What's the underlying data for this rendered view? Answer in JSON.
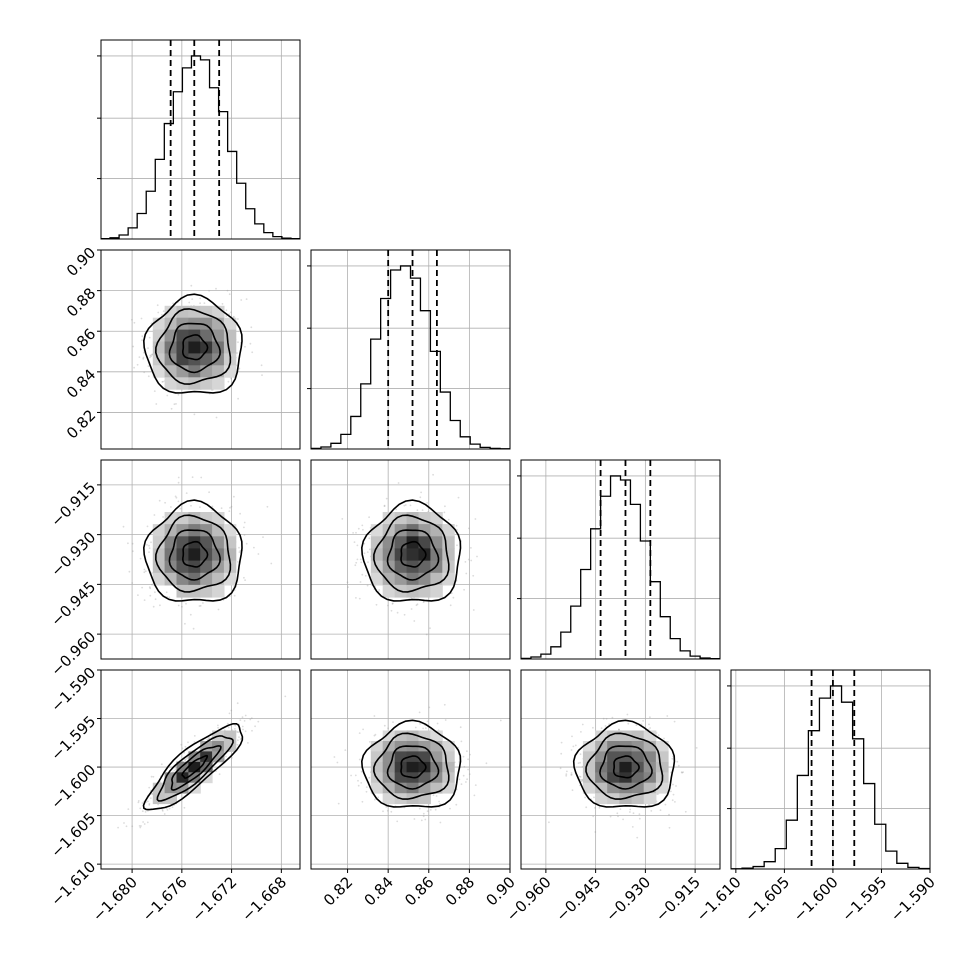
{
  "chart_data": {
    "type": "corner",
    "n_params": 4,
    "params": [
      {
        "ticks": [
          -1.68,
          -1.676,
          -1.672,
          -1.668
        ],
        "tick_labels": [
          "−1.680",
          "−1.676",
          "−1.672",
          "−1.668"
        ],
        "range": [
          -1.6825,
          -1.6665
        ],
        "quantiles": [
          -1.6769,
          -1.675,
          -1.673
        ],
        "hist": [
          5,
          15,
          50,
          140,
          320,
          600,
          1000,
          1450,
          1850,
          2150,
          2300,
          2250,
          1900,
          1600,
          1100,
          700,
          380,
          190,
          80,
          30,
          10,
          4
        ]
      },
      {
        "ticks": [
          0.82,
          0.84,
          0.86,
          0.88,
          0.9
        ],
        "tick_labels": [
          "0.82",
          "0.84",
          "0.86",
          "0.88",
          "0.90"
        ],
        "range": [
          0.802,
          0.9
        ],
        "quantiles": [
          0.84,
          0.852,
          0.864
        ],
        "hist": [
          8,
          25,
          70,
          180,
          400,
          800,
          1350,
          1850,
          2200,
          2250,
          2100,
          1700,
          1200,
          700,
          350,
          150,
          60,
          20,
          8,
          3
        ]
      },
      {
        "ticks": [
          -0.96,
          -0.945,
          -0.93,
          -0.915
        ],
        "tick_labels": [
          "−0.960",
          "−0.945",
          "−0.930",
          "−0.915"
        ],
        "range": [
          -0.9675,
          -0.9075
        ],
        "quantiles": [
          -0.9435,
          -0.936,
          -0.9285
        ],
        "hist": [
          8,
          25,
          60,
          150,
          330,
          650,
          1100,
          1600,
          2000,
          2250,
          2200,
          1900,
          1450,
          950,
          520,
          250,
          100,
          35,
          12,
          4
        ]
      },
      {
        "ticks": [
          -1.61,
          -1.605,
          -1.6,
          -1.595,
          -1.59
        ],
        "tick_labels": [
          "−1.610",
          "−1.605",
          "−1.600",
          "−1.595",
          "−1.590"
        ],
        "range": [
          -1.6105,
          -1.59
        ],
        "quantiles": [
          -1.6022,
          -1.6,
          -1.5978
        ],
        "hist": [
          3,
          10,
          30,
          90,
          250,
          600,
          1150,
          1700,
          2100,
          2250,
          2050,
          1600,
          1050,
          550,
          220,
          70,
          20,
          6
        ]
      }
    ],
    "correlations": [
      {
        "pair": [
          1,
          0
        ],
        "rho": 0.0
      },
      {
        "pair": [
          2,
          0
        ],
        "rho": 0.0
      },
      {
        "pair": [
          2,
          1
        ],
        "rho": 0.0
      },
      {
        "pair": [
          3,
          0
        ],
        "rho": 0.85
      },
      {
        "pair": [
          3,
          1
        ],
        "rho": 0.0
      },
      {
        "pair": [
          3,
          2
        ],
        "rho": 0.0
      }
    ],
    "title": "",
    "grid": true
  }
}
